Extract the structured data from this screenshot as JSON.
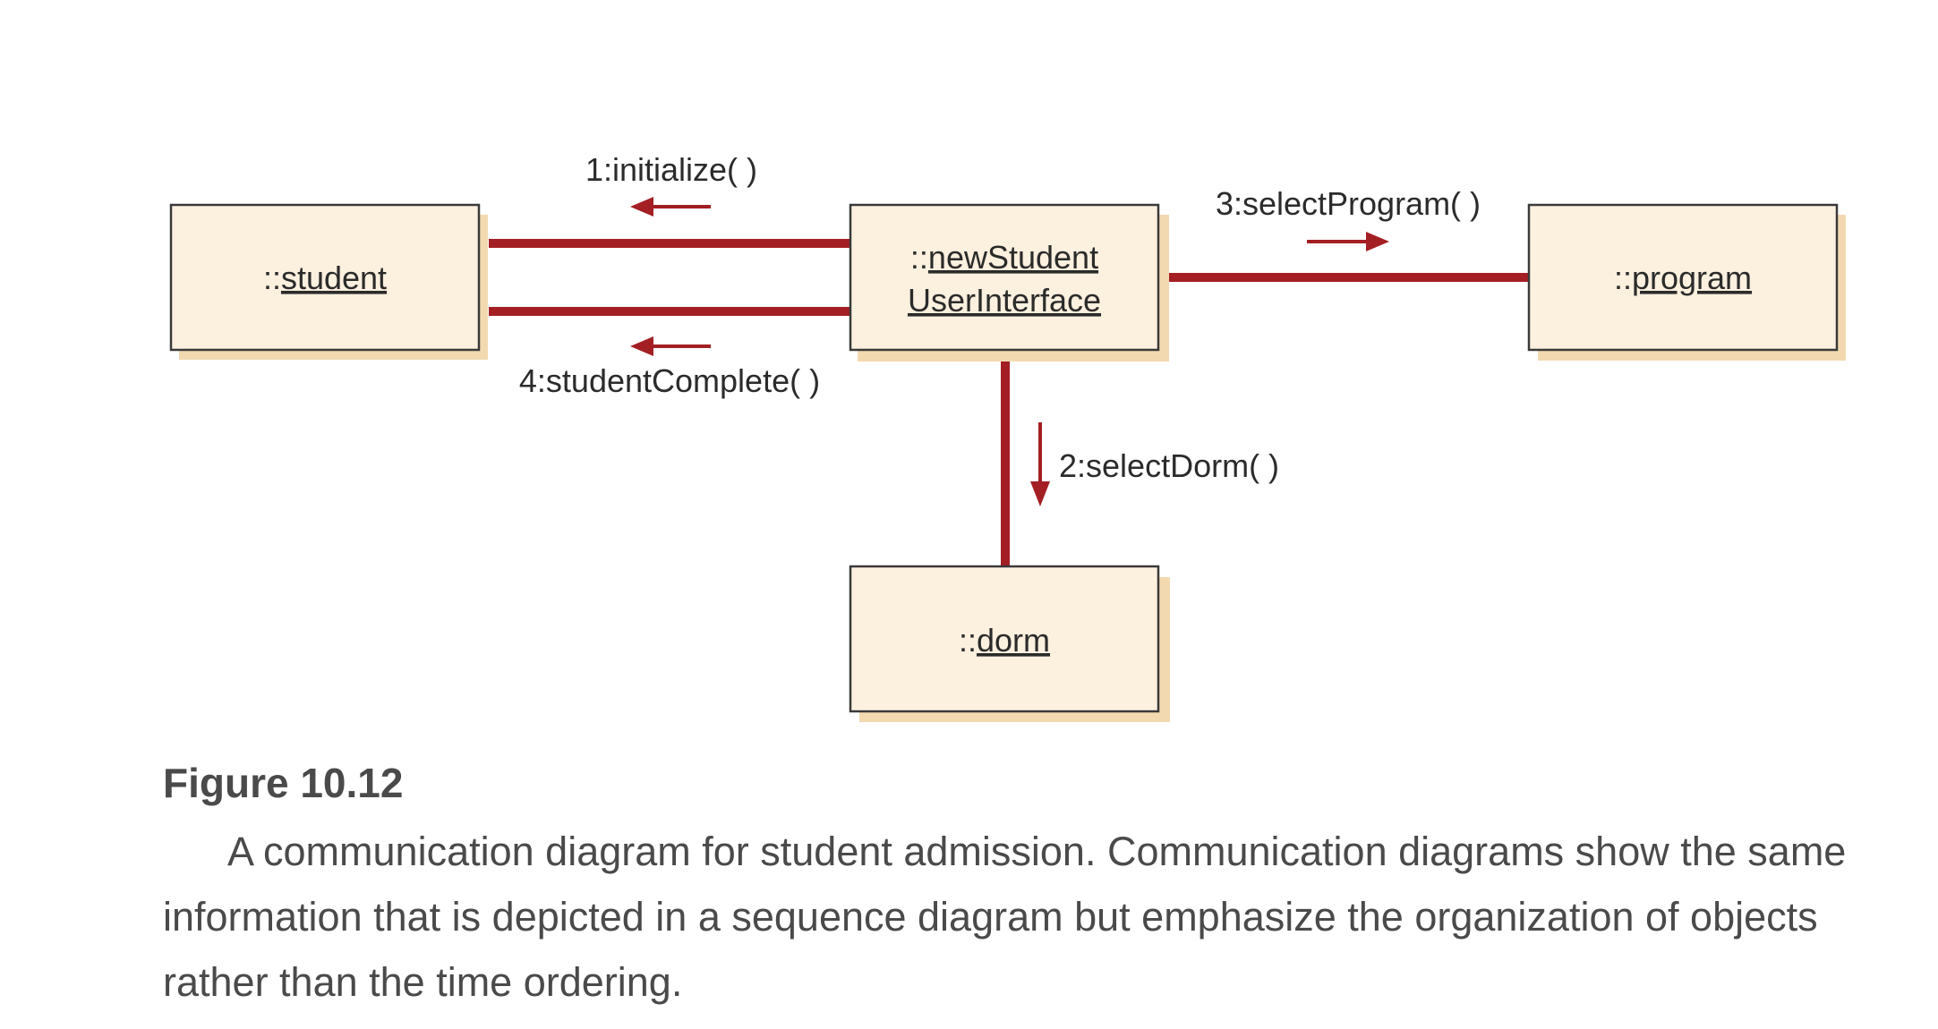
{
  "diagram": {
    "objects": {
      "student": {
        "prefix": "::",
        "name": "student"
      },
      "new_student_ui": {
        "prefix": "::",
        "name_line1": "newStudent",
        "name_line2": "UserInterface"
      },
      "program": {
        "prefix": "::",
        "name": "program"
      },
      "dorm": {
        "prefix": "::",
        "name": "dorm"
      }
    },
    "messages": {
      "m1": "1:initialize( )",
      "m2": "2:selectDorm( )",
      "m3": "3:selectProgram( )",
      "m4": "4:studentComplete( )"
    },
    "colors": {
      "box_fill": "#fcf0df",
      "box_shadow": "#f2d9b0",
      "box_border": "#3a3a3a",
      "link": "#a31f24",
      "text": "#2b2b2b"
    }
  },
  "caption": {
    "figure_number": "Figure 10.12",
    "text": "A communication diagram for student admission. Communication diagrams show the same information that is depicted in a sequence diagram but emphasize the organization of objects rather than the time ordering."
  }
}
